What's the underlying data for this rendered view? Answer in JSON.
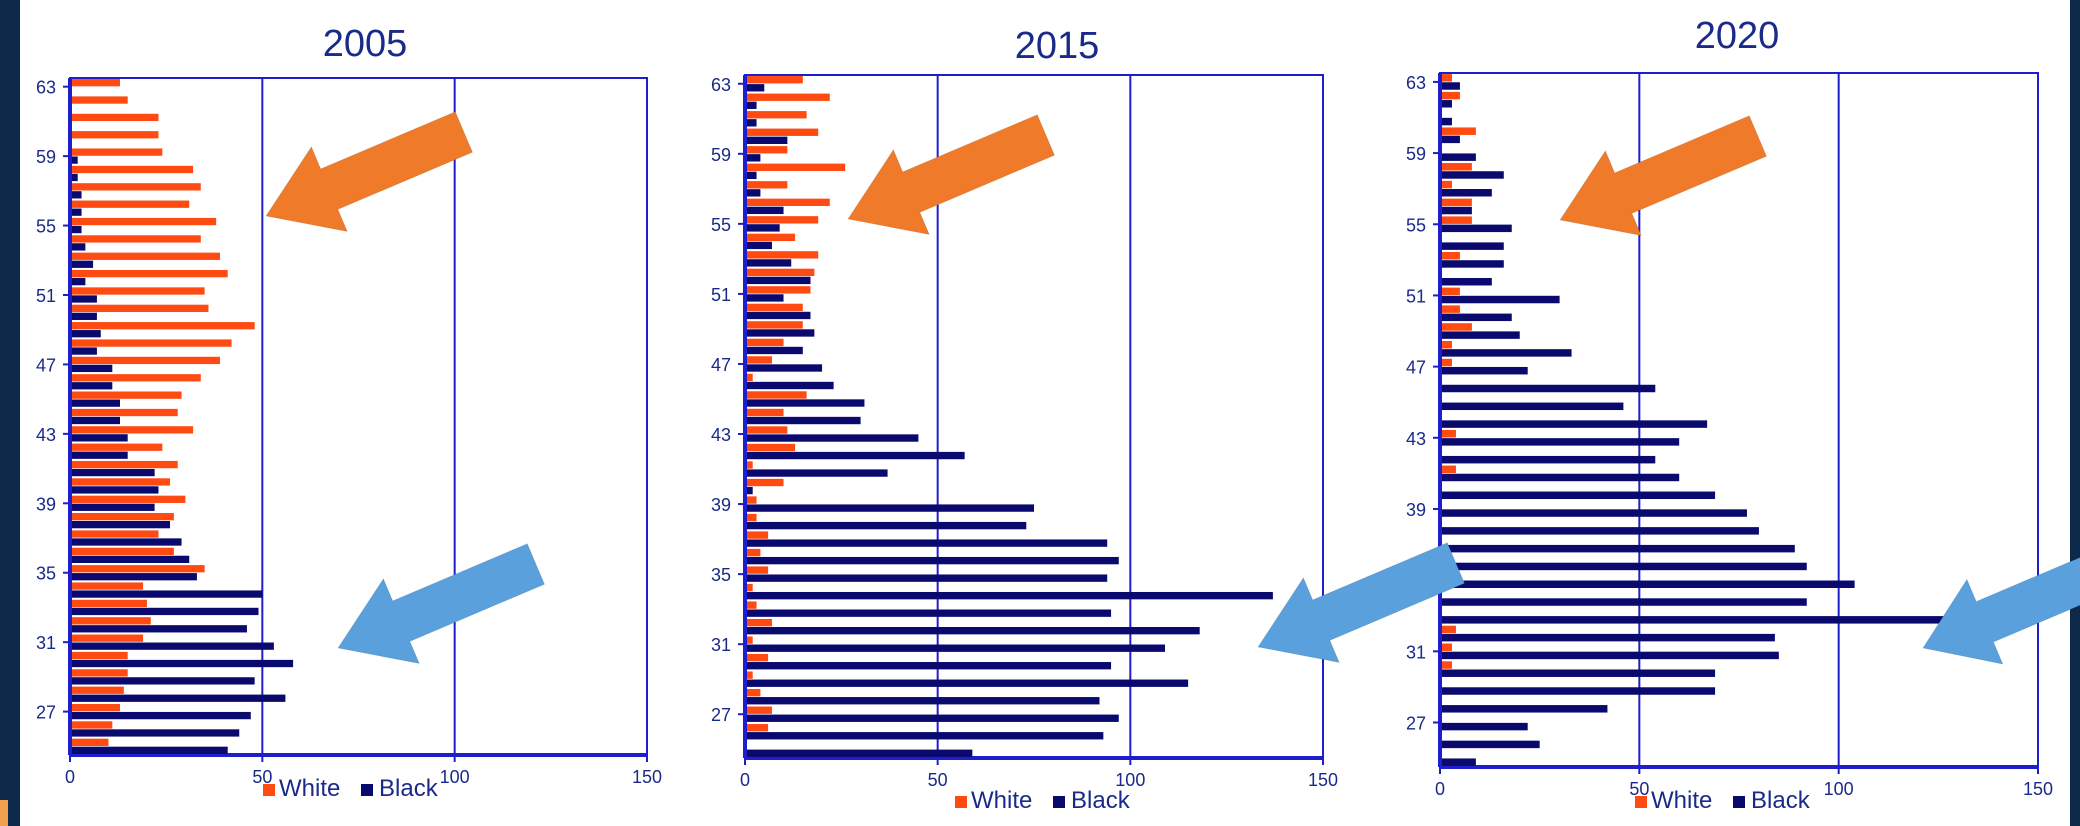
{
  "colors": {
    "white_series": "#ff4a12",
    "black_series": "#0a0a6e",
    "axis": "#1e1ecc",
    "title": "#1a2a8a",
    "orange_arrow": "#ef7a2a",
    "blue_arrow": "#5aa0dc"
  },
  "icons": [
    "arrow-left-down-orange",
    "arrow-left-down-blue"
  ],
  "chart_data": [
    {
      "type": "bar",
      "orientation": "horizontal",
      "title": "2005",
      "xlim": [
        0,
        150
      ],
      "xticks": [
        "0",
        "50",
        "100",
        "150"
      ],
      "y_tick_labels": [
        "63",
        "59",
        "55",
        "51",
        "47",
        "43",
        "39",
        "35",
        "31",
        "27"
      ],
      "grid": true,
      "legend_position": "bottom",
      "categories": [
        63,
        62,
        61,
        60,
        59,
        58,
        57,
        56,
        55,
        54,
        53,
        52,
        51,
        50,
        49,
        48,
        47,
        46,
        45,
        44,
        43,
        42,
        41,
        40,
        39,
        38,
        37,
        36,
        35,
        34,
        33,
        32,
        31,
        30,
        29,
        28,
        27,
        26,
        25
      ],
      "series": [
        {
          "name": "White",
          "values": [
            13,
            15,
            23,
            23,
            24,
            32,
            34,
            31,
            38,
            34,
            39,
            41,
            35,
            36,
            48,
            42,
            39,
            34,
            29,
            28,
            32,
            24,
            28,
            26,
            30,
            27,
            23,
            27,
            35,
            19,
            20,
            21,
            19,
            15,
            15,
            14,
            13,
            11,
            10
          ]
        },
        {
          "name": "Black",
          "values": [
            0,
            0,
            0,
            0,
            2,
            2,
            3,
            3,
            3,
            4,
            6,
            4,
            7,
            7,
            8,
            7,
            11,
            11,
            13,
            13,
            15,
            15,
            22,
            23,
            22,
            26,
            29,
            31,
            33,
            50,
            49,
            46,
            53,
            58,
            48,
            56,
            47,
            44,
            41
          ]
        }
      ]
    },
    {
      "type": "bar",
      "orientation": "horizontal",
      "title": "2015",
      "xlim": [
        0,
        150
      ],
      "xticks": [
        "0",
        "50",
        "100",
        "150"
      ],
      "y_tick_labels": [
        "63",
        "59",
        "55",
        "51",
        "47",
        "43",
        "39",
        "35",
        "31",
        "27"
      ],
      "grid": true,
      "legend_position": "bottom",
      "categories": [
        63,
        62,
        61,
        60,
        59,
        58,
        57,
        56,
        55,
        54,
        53,
        52,
        51,
        50,
        49,
        48,
        47,
        46,
        45,
        44,
        43,
        42,
        41,
        40,
        39,
        38,
        37,
        36,
        35,
        34,
        33,
        32,
        31,
        30,
        29,
        28,
        27,
        26,
        25
      ],
      "series": [
        {
          "name": "White",
          "values": [
            15,
            22,
            16,
            19,
            11,
            26,
            11,
            22,
            19,
            13,
            19,
            18,
            17,
            15,
            15,
            10,
            7,
            2,
            16,
            10,
            11,
            13,
            2,
            10,
            3,
            3,
            6,
            4,
            6,
            2,
            3,
            7,
            2,
            6,
            2,
            4,
            7,
            6,
            0
          ]
        },
        {
          "name": "Black",
          "values": [
            5,
            3,
            3,
            11,
            4,
            3,
            4,
            10,
            9,
            7,
            12,
            17,
            10,
            17,
            18,
            15,
            20,
            23,
            31,
            30,
            45,
            57,
            37,
            2,
            75,
            73,
            94,
            97,
            94,
            137,
            95,
            118,
            109,
            95,
            115,
            92,
            97,
            93,
            59
          ]
        }
      ]
    },
    {
      "type": "bar",
      "orientation": "horizontal",
      "title": "2020",
      "xlim": [
        0,
        150
      ],
      "xticks": [
        "0",
        "50",
        "100",
        "150"
      ],
      "y_tick_labels": [
        "63",
        "59",
        "55",
        "51",
        "47",
        "43",
        "39",
        "35",
        "31",
        "27"
      ],
      "grid": true,
      "legend_position": "bottom",
      "categories": [
        63,
        62,
        61,
        60,
        59,
        58,
        57,
        56,
        55,
        54,
        53,
        52,
        51,
        50,
        49,
        48,
        47,
        46,
        45,
        44,
        43,
        42,
        41,
        40,
        39,
        38,
        37,
        36,
        35,
        34,
        33,
        32,
        31,
        30,
        29,
        28,
        27,
        26,
        25
      ],
      "series": [
        {
          "name": "White",
          "values": [
            3,
            5,
            0,
            9,
            0,
            8,
            3,
            8,
            8,
            0,
            5,
            0,
            5,
            5,
            8,
            3,
            3,
            0,
            0,
            0,
            4,
            0,
            4,
            0,
            0,
            0,
            0,
            0,
            0,
            0,
            0,
            4,
            3,
            3,
            0,
            0,
            0,
            0,
            0
          ]
        },
        {
          "name": "Black",
          "values": [
            5,
            3,
            3,
            5,
            9,
            16,
            13,
            8,
            18,
            16,
            16,
            13,
            30,
            18,
            20,
            33,
            22,
            54,
            46,
            67,
            60,
            54,
            60,
            69,
            77,
            80,
            89,
            92,
            104,
            92,
            130,
            84,
            85,
            69,
            69,
            42,
            22,
            25,
            9
          ]
        }
      ]
    }
  ]
}
